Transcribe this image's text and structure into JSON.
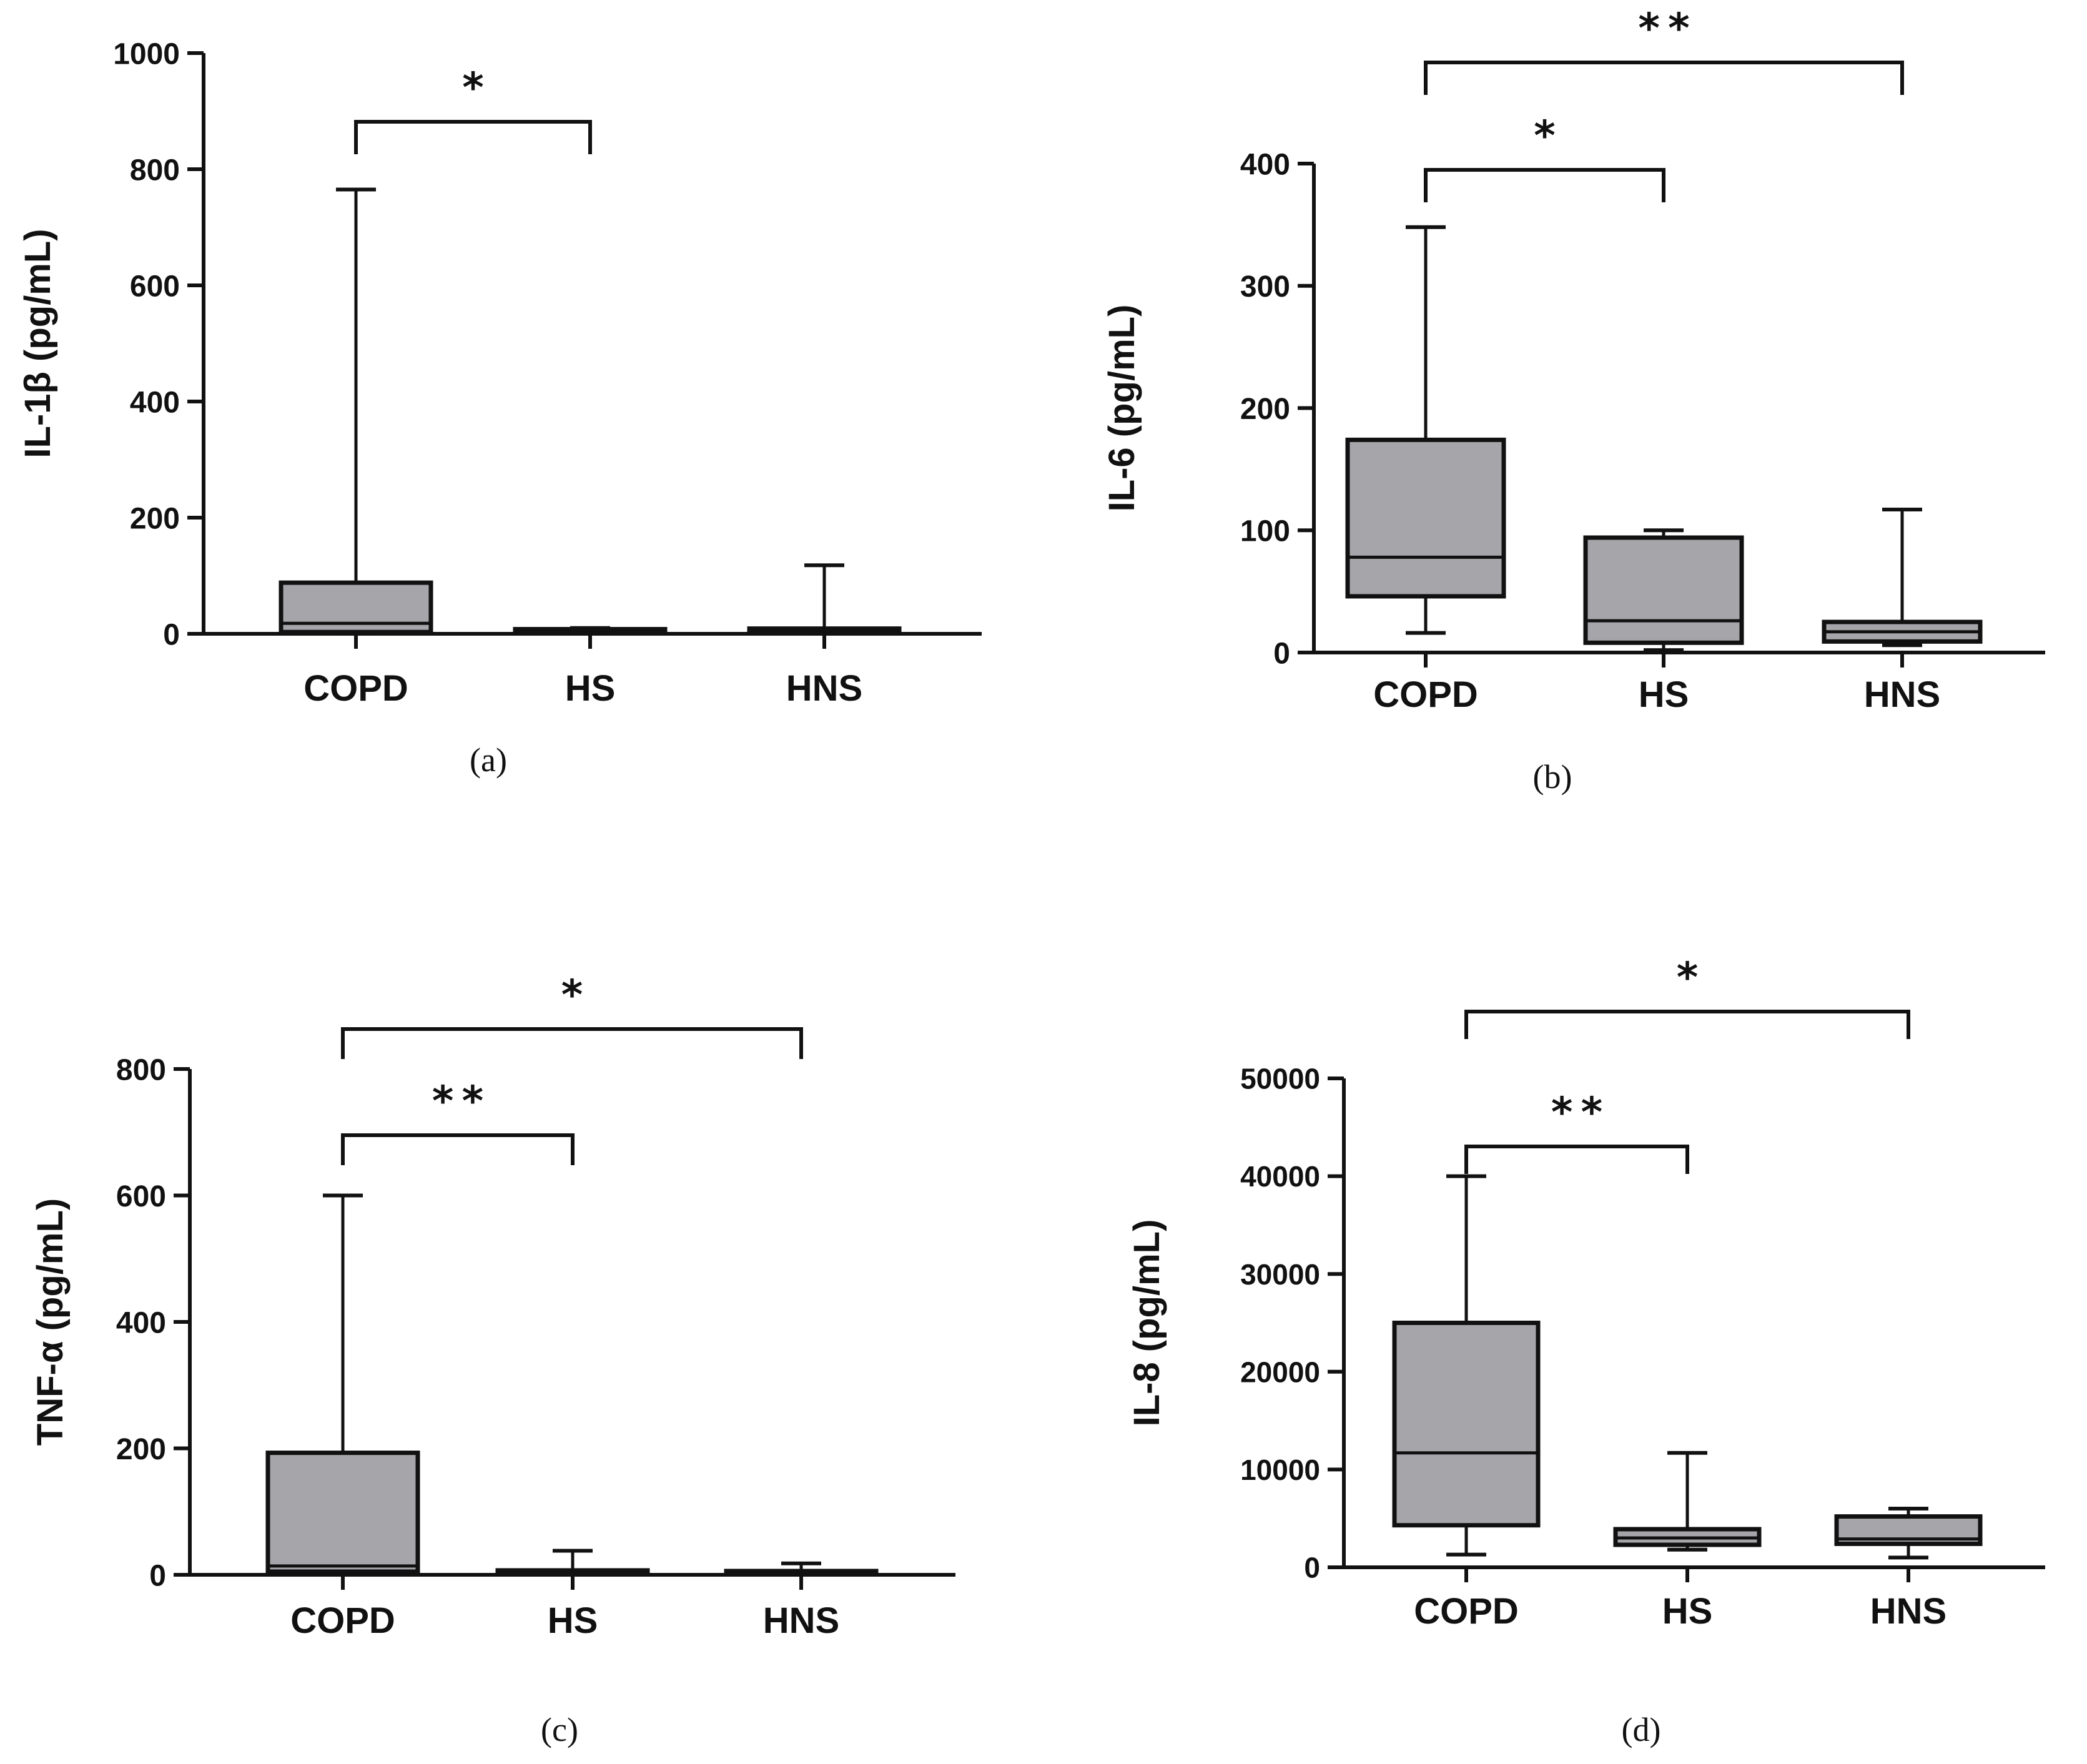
{
  "chart_data": [
    {
      "type": "box",
      "panel_label": "(a)",
      "ylabel": "IL-1β (pg/mL)",
      "ylim": [
        0,
        1000
      ],
      "yticks": [
        0,
        200,
        400,
        600,
        800,
        1000
      ],
      "categories": [
        "COPD",
        "HS",
        "HNS"
      ],
      "boxes": [
        {
          "category": "COPD",
          "min": 2,
          "q1": 3,
          "median": 18,
          "q3": 88,
          "max": 765
        },
        {
          "category": "HS",
          "min": 2,
          "q1": 3,
          "median": 5,
          "q3": 8,
          "max": 10
        },
        {
          "category": "HNS",
          "min": 2,
          "q1": 3,
          "median": 6,
          "q3": 9,
          "max": 118
        }
      ],
      "significance": [
        {
          "from": "COPD",
          "to": "HS",
          "label": "*"
        }
      ]
    },
    {
      "type": "box",
      "panel_label": "(b)",
      "ylabel": "IL-6 (pg/mL)",
      "ylim": [
        0,
        400
      ],
      "yticks": [
        0,
        100,
        200,
        300,
        400
      ],
      "categories": [
        "COPD",
        "HS",
        "HNS"
      ],
      "boxes": [
        {
          "category": "COPD",
          "min": 16,
          "q1": 46,
          "median": 78,
          "q3": 174,
          "max": 348
        },
        {
          "category": "HS",
          "min": 2,
          "q1": 8,
          "median": 26,
          "q3": 94,
          "max": 100
        },
        {
          "category": "HNS",
          "min": 6,
          "q1": 9,
          "median": 17,
          "q3": 25,
          "max": 117
        }
      ],
      "significance": [
        {
          "from": "COPD",
          "to": "HS",
          "label": "*"
        },
        {
          "from": "COPD",
          "to": "HNS",
          "label": "**"
        }
      ]
    },
    {
      "type": "box",
      "panel_label": "(c)",
      "ylabel": "TNF-α (pg/mL)",
      "ylim": [
        0,
        800
      ],
      "yticks": [
        0,
        200,
        400,
        600,
        800
      ],
      "categories": [
        "COPD",
        "HS",
        "HNS"
      ],
      "boxes": [
        {
          "category": "COPD",
          "min": 2,
          "q1": 5,
          "median": 14,
          "q3": 193,
          "max": 600
        },
        {
          "category": "HS",
          "min": 1,
          "q1": 2,
          "median": 4,
          "q3": 7,
          "max": 38
        },
        {
          "category": "HNS",
          "min": 1,
          "q1": 2,
          "median": 4,
          "q3": 6,
          "max": 18
        }
      ],
      "significance": [
        {
          "from": "COPD",
          "to": "HS",
          "label": "**"
        },
        {
          "from": "COPD",
          "to": "HNS",
          "label": "*"
        }
      ]
    },
    {
      "type": "box",
      "panel_label": "(d)",
      "ylabel": "IL-8 (pg/mL)",
      "ylim": [
        0,
        50000
      ],
      "yticks": [
        0,
        10000,
        20000,
        30000,
        40000,
        50000
      ],
      "categories": [
        "COPD",
        "HS",
        "HNS"
      ],
      "boxes": [
        {
          "category": "COPD",
          "min": 1300,
          "q1": 4300,
          "median": 11700,
          "q3": 25000,
          "max": 40000
        },
        {
          "category": "HS",
          "min": 1800,
          "q1": 2300,
          "median": 3000,
          "q3": 3900,
          "max": 11700
        },
        {
          "category": "HNS",
          "min": 1000,
          "q1": 2400,
          "median": 2900,
          "q3": 5200,
          "max": 6000
        }
      ],
      "significance": [
        {
          "from": "COPD",
          "to": "HS",
          "label": "**"
        },
        {
          "from": "COPD",
          "to": "HNS",
          "label": "*"
        }
      ]
    }
  ]
}
